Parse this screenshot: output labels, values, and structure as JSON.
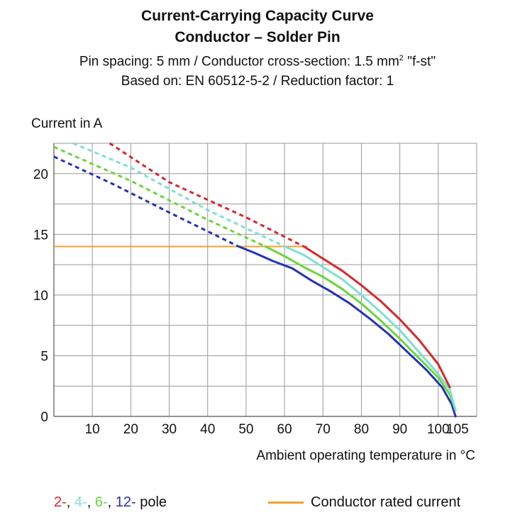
{
  "title": {
    "line1": "Current-Carrying Capacity Curve",
    "line2": "Conductor – Solder Pin",
    "line3_pre": "Pin spacing: 5 mm / Conductor cross-section: 1.5 mm",
    "line3_sup": "2",
    "line3_post": " \"f-st\"",
    "line4": "Based on: EN 60512-5-2 / Reduction factor: 1"
  },
  "legend": {
    "pole_parts": [
      {
        "text": "2-",
        "color": "#d9262b"
      },
      {
        "text": ", ",
        "color": "#111111"
      },
      {
        "text": "4-",
        "color": "#7ee0cf"
      },
      {
        "text": ", ",
        "color": "#111111"
      },
      {
        "text": "6-",
        "color": "#6ad63a"
      },
      {
        "text": ", ",
        "color": "#111111"
      },
      {
        "text": "12-",
        "color": "#2432b8"
      },
      {
        "text": " pole",
        "color": "#111111"
      }
    ],
    "rated_label": "Conductor rated current",
    "rated_color": "#f0a030"
  },
  "chart_data": {
    "type": "line",
    "xlabel": "Ambient operating temperature in °C",
    "ylabel": "Current in A",
    "xlim": [
      0,
      110
    ],
    "ylim": [
      0,
      22.5
    ],
    "xticks": [
      10,
      20,
      30,
      40,
      50,
      60,
      70,
      80,
      90,
      100,
      105
    ],
    "yticks": [
      0,
      5,
      10,
      15,
      20
    ],
    "grid": true,
    "legend_position": "bottom",
    "rated_current": {
      "name": "Conductor rated current",
      "value": 14,
      "x_range": [
        0,
        66
      ],
      "color": "#f0a030"
    },
    "series": [
      {
        "name": "2-pole",
        "color": "#d9262b",
        "dashed": [
          [
            14.5,
            22.5
          ],
          [
            30,
            19.3
          ],
          [
            50,
            16.4
          ],
          [
            65,
            14.0
          ]
        ],
        "solid": [
          [
            65,
            14.0
          ],
          [
            70,
            13.0
          ],
          [
            75,
            12.0
          ],
          [
            80,
            10.8
          ],
          [
            85,
            9.5
          ],
          [
            90,
            8.0
          ],
          [
            95,
            6.3
          ],
          [
            100,
            4.3
          ],
          [
            103,
            2.4
          ]
        ]
      },
      {
        "name": "4-pole",
        "color": "#7ee0cf",
        "dashed": [
          [
            5,
            22.5
          ],
          [
            20,
            20.5
          ],
          [
            40,
            17.0
          ],
          [
            60,
            14.0
          ]
        ],
        "solid": [
          [
            60,
            14.0
          ],
          [
            65,
            13.3
          ],
          [
            70,
            12.3
          ],
          [
            75,
            11.3
          ],
          [
            80,
            10.0
          ],
          [
            85,
            8.6
          ],
          [
            90,
            7.1
          ],
          [
            95,
            5.3
          ],
          [
            100,
            3.5
          ],
          [
            103,
            2.2
          ],
          [
            104.5,
            0.5
          ]
        ]
      },
      {
        "name": "6-pole",
        "color": "#6ad63a",
        "dashed": [
          [
            0,
            22.2
          ],
          [
            20,
            19.4
          ],
          [
            40,
            16.2
          ],
          [
            55,
            14.0
          ]
        ],
        "solid": [
          [
            55,
            14.0
          ],
          [
            60,
            13.2
          ],
          [
            65,
            12.3
          ],
          [
            70,
            11.5
          ],
          [
            75,
            10.5
          ],
          [
            80,
            9.3
          ],
          [
            85,
            7.9
          ],
          [
            90,
            6.4
          ],
          [
            95,
            4.8
          ],
          [
            100,
            3.2
          ],
          [
            103,
            1.8
          ],
          [
            104.5,
            0.5
          ]
        ]
      },
      {
        "name": "12-pole",
        "color": "#2432b8",
        "dashed": [
          [
            0,
            21.4
          ],
          [
            15,
            19.2
          ],
          [
            30,
            16.8
          ],
          [
            48,
            14.0
          ]
        ],
        "solid": [
          [
            48,
            14.0
          ],
          [
            52,
            13.5
          ],
          [
            57,
            12.8
          ],
          [
            62,
            12.2
          ],
          [
            67,
            11.2
          ],
          [
            72,
            10.3
          ],
          [
            77,
            9.3
          ],
          [
            82,
            8.1
          ],
          [
            87,
            6.8
          ],
          [
            92,
            5.3
          ],
          [
            97,
            3.8
          ],
          [
            101,
            2.4
          ],
          [
            103.5,
            1.0
          ],
          [
            104.5,
            0
          ]
        ]
      }
    ]
  }
}
